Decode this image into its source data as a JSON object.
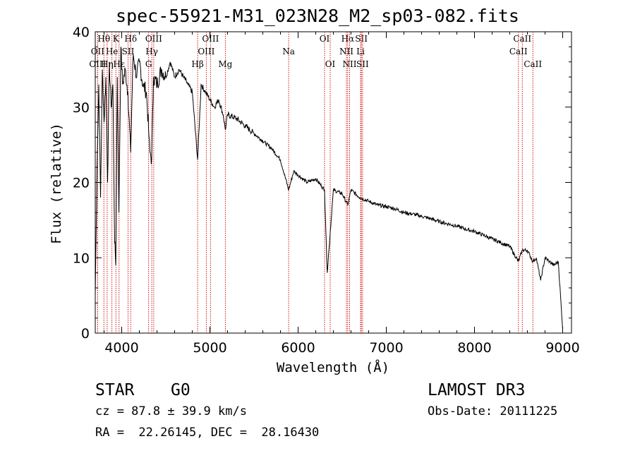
{
  "chart_data": {
    "type": "line",
    "title": "spec-55921-M31_023N28_M2_sp03-082.fits",
    "xlabel": "Wavelength (Å)",
    "ylabel": "Flux (relative)",
    "xlim": [
      3700,
      9100
    ],
    "ylim": [
      0,
      40
    ],
    "xticks": [
      "4000",
      "5000",
      "6000",
      "7000",
      "8000",
      "9000"
    ],
    "yticks": [
      "0",
      "10",
      "20",
      "30",
      "40"
    ],
    "series": [
      {
        "name": "spectrum",
        "x": [
          3700,
          3720,
          3740,
          3760,
          3780,
          3800,
          3820,
          3840,
          3860,
          3880,
          3900,
          3920,
          3933,
          3950,
          3968,
          3990,
          4010,
          4040,
          4070,
          4101,
          4130,
          4170,
          4200,
          4240,
          4280,
          4305,
          4320,
          4340,
          4360,
          4400,
          4450,
          4500,
          4550,
          4600,
          4650,
          4700,
          4750,
          4800,
          4861,
          4900,
          4950,
          5000,
          5050,
          5100,
          5150,
          5175,
          5200,
          5300,
          5400,
          5500,
          5600,
          5700,
          5800,
          5893,
          5950,
          6000,
          6100,
          6200,
          6300,
          6330,
          6400,
          6500,
          6563,
          6600,
          6700,
          6800,
          6900,
          7000,
          7100,
          7200,
          7300,
          7400,
          7500,
          7600,
          7700,
          7800,
          7900,
          8000,
          8100,
          8200,
          8300,
          8400,
          8498,
          8542,
          8600,
          8662,
          8700,
          8750,
          8800,
          8850,
          8900,
          8950,
          9000
        ],
        "values": [
          5,
          22,
          33,
          18,
          35,
          28,
          34,
          20,
          36,
          30,
          33,
          12,
          9,
          34,
          16,
          38,
          33,
          35,
          32,
          24,
          37,
          34,
          36,
          33,
          32,
          27,
          24,
          23,
          34,
          33,
          35,
          34,
          36,
          34,
          35,
          34,
          33,
          32,
          23,
          33,
          32,
          31,
          30,
          31,
          29,
          27,
          29,
          28.5,
          27.5,
          26.5,
          25.5,
          24.5,
          23,
          19,
          21.5,
          21,
          20,
          20.5,
          19,
          8,
          19,
          18.5,
          17,
          19,
          18,
          17.5,
          17,
          16.8,
          16.5,
          16,
          15.8,
          15.5,
          15.2,
          14.8,
          14.5,
          14.2,
          13.8,
          13.5,
          13,
          12.5,
          12,
          11.5,
          9.5,
          11,
          11,
          9.5,
          10,
          7,
          10,
          9.5,
          9,
          9.5,
          0.5
        ]
      }
    ],
    "lines": [
      {
        "label": "Hθ",
        "wl": 3798,
        "row": 1
      },
      {
        "label": "OII",
        "wl": 3727,
        "row": 2
      },
      {
        "label": "OIII",
        "wl": 3727,
        "row": 3
      },
      {
        "label": "K",
        "wl": 3934,
        "row": 1
      },
      {
        "label": "He",
        "wl": 3889,
        "row": 2
      },
      {
        "label": "Hη",
        "wl": 3835,
        "row": 3
      },
      {
        "label": "Hε",
        "wl": 3970,
        "row": 3
      },
      {
        "label": "SII",
        "wl": 4072,
        "row": 2
      },
      {
        "label": "Hδ",
        "wl": 4102,
        "row": 1
      },
      {
        "label": "OIII",
        "wl": 4363,
        "row": 1
      },
      {
        "label": "Hγ",
        "wl": 4341,
        "row": 2
      },
      {
        "label": "G",
        "wl": 4305,
        "row": 3
      },
      {
        "label": "Hβ",
        "wl": 4861,
        "row": 3
      },
      {
        "label": "OIII",
        "wl": 5007,
        "row": 1
      },
      {
        "label": "OIII",
        "wl": 4959,
        "row": 2
      },
      {
        "label": "Mg",
        "wl": 5175,
        "row": 3
      },
      {
        "label": "Na",
        "wl": 5893,
        "row": 2
      },
      {
        "label": "OI",
        "wl": 6300,
        "row": 1
      },
      {
        "label": "OI",
        "wl": 6364,
        "row": 3
      },
      {
        "label": "Hα",
        "wl": 6563,
        "row": 1
      },
      {
        "label": "NII",
        "wl": 6548,
        "row": 2
      },
      {
        "label": "NII",
        "wl": 6584,
        "row": 3
      },
      {
        "label": "SII",
        "wl": 6717,
        "row": 1
      },
      {
        "label": "Li",
        "wl": 6708,
        "row": 2
      },
      {
        "label": "SII",
        "wl": 6731,
        "row": 3
      },
      {
        "label": "CaII",
        "wl": 8542,
        "row": 1
      },
      {
        "label": "CaII",
        "wl": 8498,
        "row": 2
      },
      {
        "label": "CaII",
        "wl": 8662,
        "row": 3
      }
    ],
    "line_color": "#cc0000"
  },
  "info": {
    "class": "STAR",
    "subclass": "G0",
    "cz": "cz = 87.8 ± 39.9 km/s",
    "radec": "RA =  22.26145, DEC =  28.16430",
    "survey": "LAMOST DR3",
    "obsdate": "Obs-Date: 20111225"
  }
}
